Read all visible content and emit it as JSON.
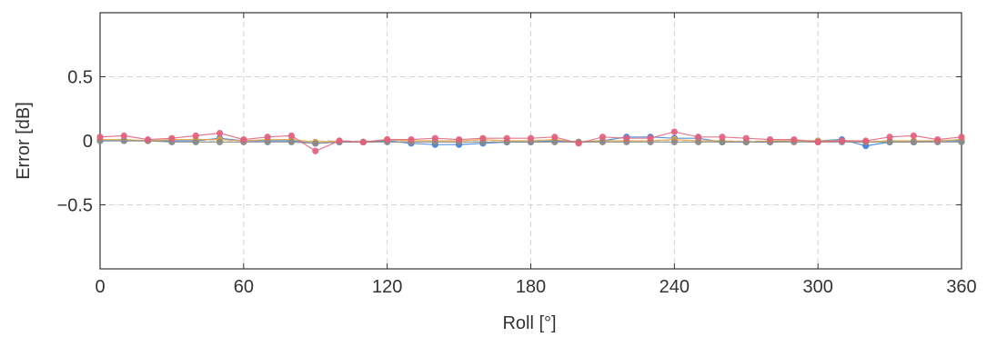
{
  "chart_data": {
    "type": "line",
    "title": "",
    "xlabel": "Roll [°]",
    "ylabel": "Error [dB]",
    "xlim": [
      0,
      360
    ],
    "ylim": [
      -1,
      1
    ],
    "xticks": [
      0,
      60,
      120,
      180,
      240,
      300,
      360
    ],
    "xtick_labels": [
      "0",
      "60",
      "120",
      "180",
      "240",
      "300",
      "360"
    ],
    "yticks": [
      -0.5,
      0,
      0.5
    ],
    "ytick_labels": [
      "−0.5",
      "0",
      "0.5"
    ],
    "grid": true,
    "x": [
      0,
      10,
      20,
      30,
      40,
      50,
      60,
      70,
      80,
      90,
      100,
      110,
      120,
      130,
      140,
      150,
      160,
      170,
      180,
      190,
      200,
      210,
      220,
      230,
      240,
      250,
      260,
      270,
      280,
      290,
      300,
      310,
      320,
      330,
      340,
      350,
      360
    ],
    "series": [
      {
        "color": "#3b7dd8",
        "values": [
          0.0,
          0.0,
          0.0,
          0.0,
          0.0,
          0.02,
          0.0,
          0.0,
          0.0,
          -0.02,
          -0.01,
          -0.01,
          0.0,
          -0.02,
          -0.03,
          -0.03,
          -0.02,
          -0.01,
          -0.01,
          0.0,
          -0.01,
          0.0,
          0.03,
          0.03,
          0.02,
          0.02,
          -0.01,
          -0.01,
          -0.01,
          0.0,
          0.0,
          0.01,
          -0.04,
          -0.01,
          -0.01,
          0.0,
          0.0
        ]
      },
      {
        "color": "#e6a23c",
        "values": [
          0.01,
          0.01,
          0.0,
          0.01,
          0.01,
          0.01,
          0.0,
          0.01,
          0.01,
          -0.01,
          0.0,
          -0.01,
          0.01,
          0.0,
          0.0,
          0.0,
          0.01,
          0.0,
          0.0,
          0.01,
          -0.01,
          0.0,
          0.0,
          0.0,
          0.01,
          0.0,
          0.0,
          -0.01,
          0.0,
          0.0,
          0.0,
          0.0,
          -0.01,
          0.0,
          0.0,
          0.0,
          0.01
        ]
      },
      {
        "color": "#8a8a8a",
        "values": [
          0.0,
          0.0,
          0.0,
          -0.01,
          -0.01,
          -0.01,
          -0.01,
          -0.01,
          -0.01,
          -0.02,
          -0.01,
          -0.01,
          -0.01,
          -0.01,
          -0.01,
          -0.01,
          -0.01,
          -0.01,
          -0.01,
          -0.01,
          -0.01,
          -0.01,
          -0.01,
          -0.01,
          -0.01,
          -0.01,
          -0.01,
          -0.01,
          -0.01,
          -0.01,
          -0.01,
          -0.01,
          -0.01,
          -0.01,
          -0.01,
          -0.01,
          -0.01
        ]
      },
      {
        "color": "#e0607e",
        "values": [
          0.03,
          0.04,
          0.01,
          0.02,
          0.04,
          0.06,
          0.01,
          0.03,
          0.04,
          -0.08,
          0.0,
          -0.01,
          0.01,
          0.01,
          0.02,
          0.01,
          0.02,
          0.02,
          0.02,
          0.03,
          -0.02,
          0.03,
          0.02,
          0.02,
          0.07,
          0.03,
          0.03,
          0.02,
          0.01,
          0.01,
          -0.01,
          0.0,
          0.0,
          0.03,
          0.04,
          0.01,
          0.03
        ]
      }
    ]
  }
}
